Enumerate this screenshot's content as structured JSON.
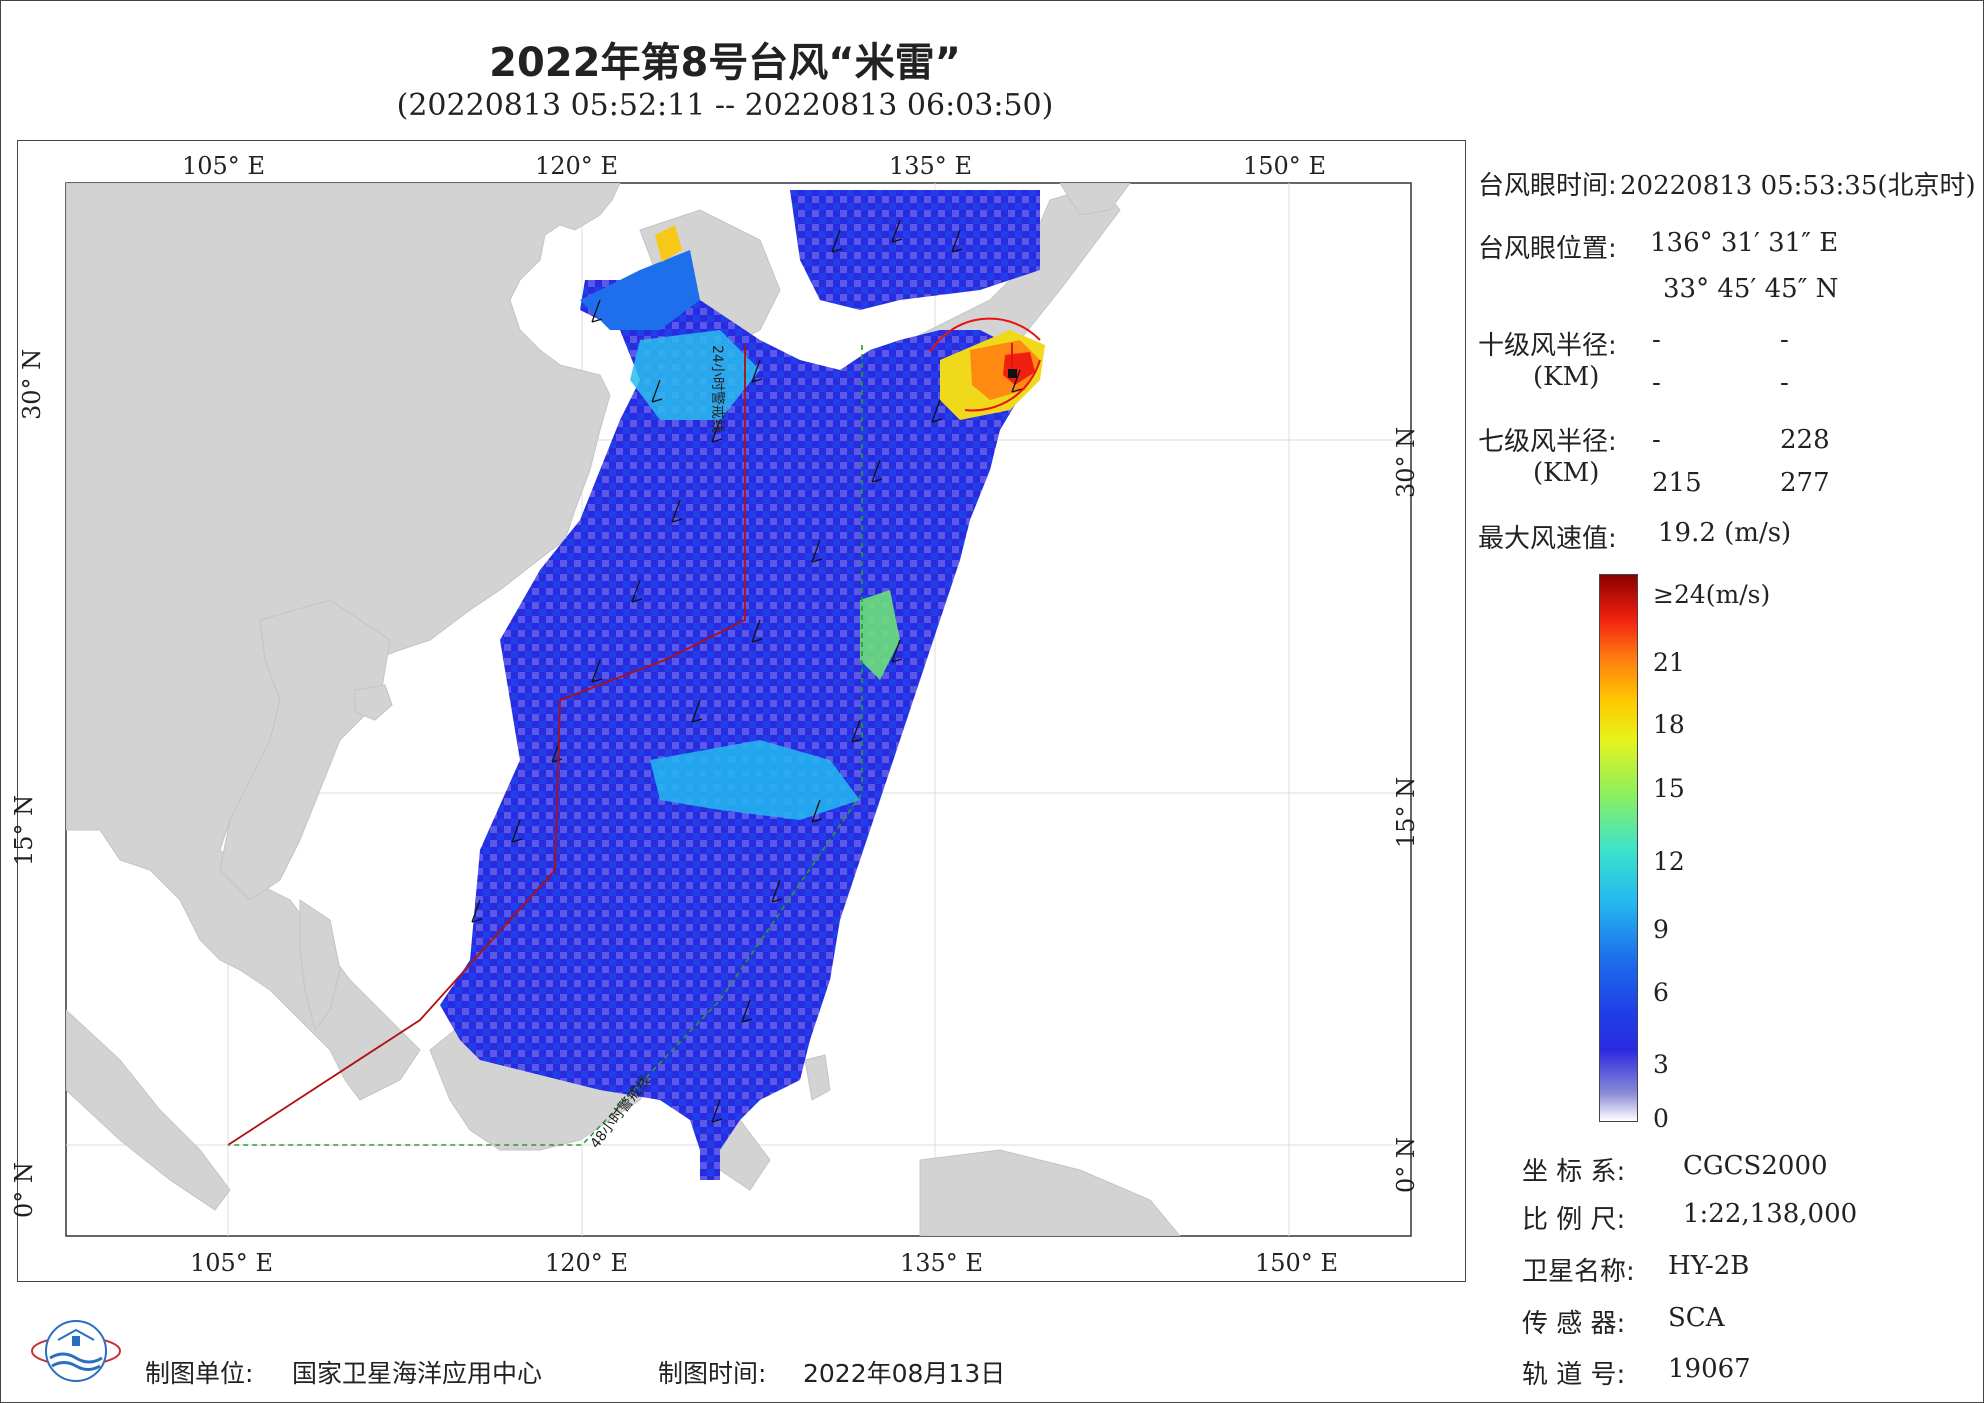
{
  "title": "2022年第8号台风“米雷”",
  "subtitle": "(20220813 05:52:11 -- 20220813 06:03:50)",
  "map": {
    "lon_ticks": [
      "105° E",
      "120° E",
      "135° E",
      "150° E"
    ],
    "lat_ticks": [
      "30° N",
      "15° N",
      "0° N"
    ],
    "track_24h_label": "24小时警戒线",
    "track_48h_label": "48小时警戒线",
    "colors": {
      "land": "#d3d3d3",
      "ocean": "#ffffff",
      "alert_24h": "#b01010",
      "alert_48h": "#28a028",
      "storm_center": "#e81010"
    }
  },
  "info": {
    "eye_time_label": "台风眼时间:",
    "eye_time_value": "20220813 05:53:35(北京时)",
    "eye_pos_label": "台风眼位置:",
    "eye_lon": "136° 31′ 31″ E",
    "eye_lat": "33° 45′ 45″ N",
    "r10_label": "十级风半径:",
    "r10_unit": "(KM)",
    "r10_values": [
      "-",
      "-",
      "-",
      "-"
    ],
    "r7_label": "七级风半径:",
    "r7_unit": "(KM)",
    "r7_values": [
      "-",
      "228",
      "215",
      "277"
    ],
    "max_wind_label": "最大风速值:",
    "max_wind_value": "19.2  (m/s)"
  },
  "colorbar": {
    "top_label": "≥24(m/s)",
    "ticks": [
      "21",
      "18",
      "15",
      "12",
      "9",
      "6",
      "3",
      "0"
    ]
  },
  "meta": {
    "crs_label": "坐 标 系:",
    "crs_value": "CGCS2000",
    "scale_label": "比 例 尺:",
    "scale_value": "1:22,138,000",
    "satellite_label": "卫星名称:",
    "satellite_value": "HY-2B",
    "sensor_label": "传 感 器:",
    "sensor_value": "SCA",
    "orbit_label": "轨 道 号:",
    "orbit_value": "19067"
  },
  "footer": {
    "unit_label": "制图单位:",
    "unit_value": "国家卫星海洋应用中心",
    "time_label": "制图时间:",
    "time_value": "2022年08月13日"
  }
}
